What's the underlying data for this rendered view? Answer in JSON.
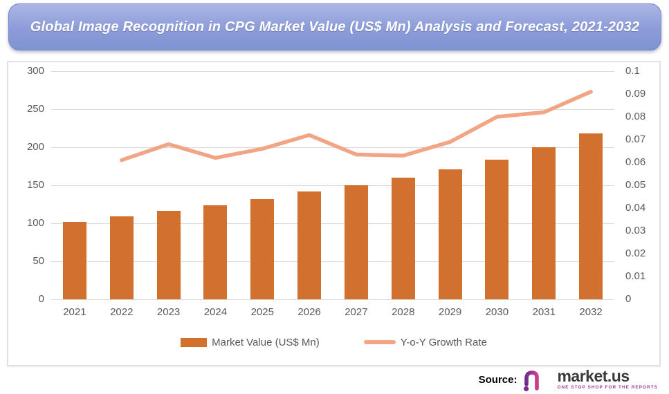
{
  "title": "Global Image Recognition in CPG Market Value (US$ Mn) Analysis and Forecast, 2021-2032",
  "chart_data": {
    "type": "bar",
    "subtype": "combo-bar-line-dual-axis",
    "title": "Global Image Recognition in CPG Market Value (US$ Mn) Analysis and Forecast, 2021-2032",
    "categories": [
      "2021",
      "2022",
      "2023",
      "2024",
      "2025",
      "2026",
      "2027",
      "2028",
      "2029",
      "2030",
      "2031",
      "2032"
    ],
    "series": [
      {
        "name": "Market Value (US$ Mn)",
        "type": "bar",
        "axis": "left",
        "color": "#d2702e",
        "values": [
          102,
          109,
          116,
          124,
          132,
          142,
          150,
          160,
          171,
          184,
          200,
          218
        ]
      },
      {
        "name": "Y-o-Y Growth Rate",
        "type": "line",
        "axis": "right",
        "color": "#f2a584",
        "values": [
          null,
          0.061,
          0.068,
          0.062,
          0.066,
          0.072,
          0.0635,
          0.063,
          0.069,
          0.08,
          0.082,
          0.091
        ]
      }
    ],
    "left_axis": {
      "min": 0,
      "max": 300,
      "step": 50,
      "ticks_top_to_bottom": [
        "300",
        "250",
        "200",
        "150",
        "100",
        "50",
        "0"
      ]
    },
    "right_axis": {
      "min": 0,
      "max": 0.1,
      "step": 0.01,
      "ticks_top_to_bottom": [
        "0.1",
        "0.09",
        "0.08",
        "0.07",
        "0.06",
        "0.05",
        "0.04",
        "0.03",
        "0.02",
        "0.01",
        "0"
      ]
    },
    "grid": true,
    "legend_position": "bottom"
  },
  "legend": {
    "bar_label": "Market Value (US$ Mn)",
    "line_label": "Y-o-Y Growth Rate"
  },
  "source": {
    "label": "Source:",
    "brand": "market.us",
    "tagline": "ONE STOP SHOP FOR THE REPORTS"
  },
  "colors": {
    "bar": "#d2702e",
    "line": "#f2a584",
    "banner": "#8c9cd9",
    "axis_text": "#595959",
    "gridline": "#d9d9d9",
    "logo_purple": "#6c2d91",
    "logo_magenta": "#c93f8a"
  }
}
